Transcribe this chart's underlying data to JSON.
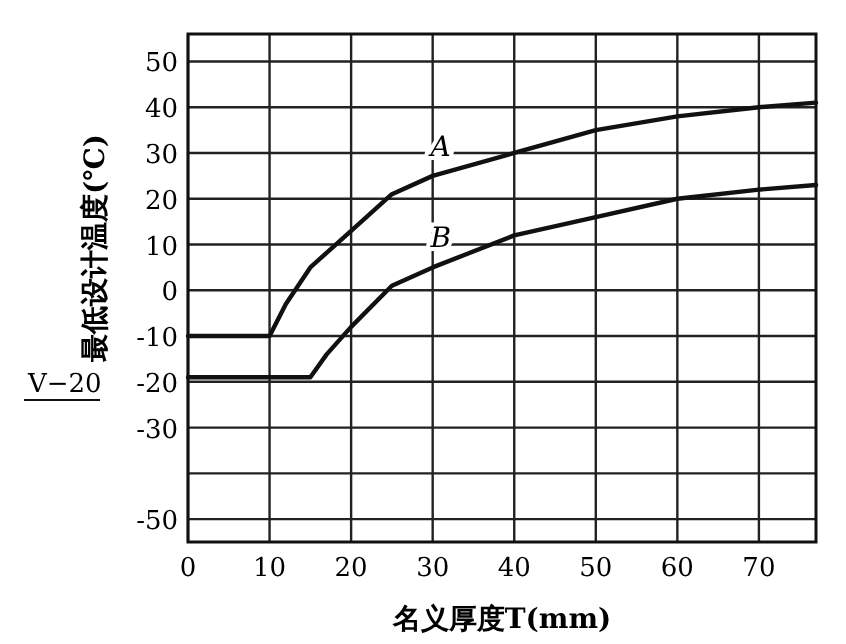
{
  "chart_data": {
    "type": "line",
    "xlabel": "名义厚度T(mm)",
    "ylabel": "最低设计温度(℃)",
    "xlim": [
      0,
      77
    ],
    "ylim": [
      -55,
      56
    ],
    "xticks": [
      0,
      10,
      20,
      30,
      40,
      50,
      60,
      70
    ],
    "yticks": [
      50,
      40,
      30,
      20,
      10,
      0,
      -10,
      -20,
      -30,
      {
        "value": -40,
        "label": null
      },
      -50
    ],
    "grid": true,
    "marker": "none",
    "line_style": "solid",
    "series": [
      {
        "name": "A",
        "color": "#111111",
        "x": [
          0,
          10,
          12,
          15,
          20,
          25,
          30,
          40,
          50,
          60,
          70,
          77
        ],
        "values": [
          -10,
          -10,
          -3,
          5,
          13,
          21,
          25,
          30,
          35,
          38,
          40,
          41
        ]
      },
      {
        "name": "B",
        "color": "#111111",
        "x": [
          0,
          15,
          17,
          20,
          25,
          30,
          40,
          50,
          60,
          70,
          77
        ],
        "values": [
          -19,
          -19,
          -14,
          -8,
          1,
          5,
          12,
          16,
          20,
          22,
          23
        ]
      }
    ],
    "annotations": [
      "V−20"
    ]
  }
}
